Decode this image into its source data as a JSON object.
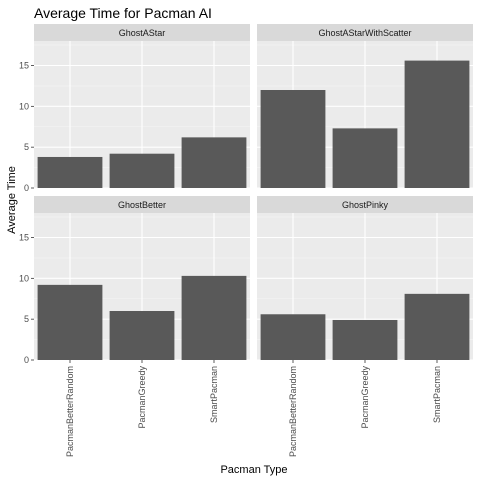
{
  "chart_data": {
    "type": "bar",
    "title": "Average Time for Pacman AI",
    "xlabel": "Pacman Type",
    "ylabel": "Average Time",
    "categories": [
      "PacmanBetterRandom",
      "PacmanGreedy",
      "SmartPacman"
    ],
    "ylim": [
      0,
      18
    ],
    "yticks": [
      0,
      5,
      10,
      15
    ],
    "facets": [
      {
        "name": "GhostAStar",
        "values": [
          3.8,
          4.2,
          6.2
        ]
      },
      {
        "name": "GhostAStarWithScatter",
        "values": [
          12.0,
          7.3,
          15.6
        ]
      },
      {
        "name": "GhostBetter",
        "values": [
          9.2,
          6.0,
          10.3
        ]
      },
      {
        "name": "GhostPinky",
        "values": [
          5.6,
          4.9,
          8.1
        ]
      }
    ],
    "bar_color": "#595959",
    "panel_bg": "#ebebeb",
    "strip_bg": "#d9d9d9",
    "grid": true,
    "legend": "none"
  }
}
